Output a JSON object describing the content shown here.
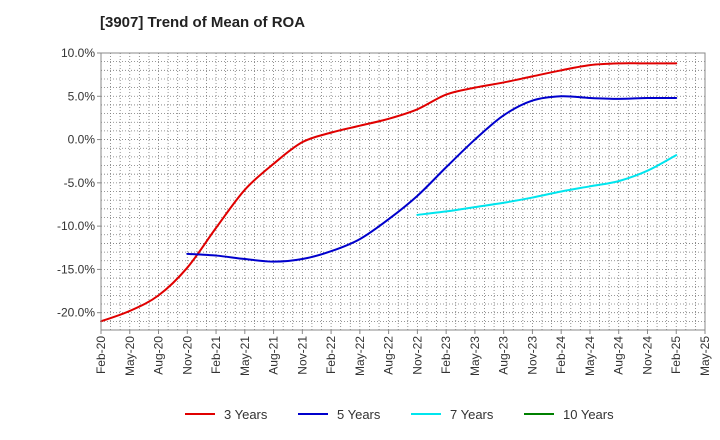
{
  "chart_data": {
    "type": "line",
    "title": "[3907]  Trend of Mean of ROA",
    "xlabel": "",
    "ylabel": "",
    "x_ticks": [
      "Feb-20",
      "May-20",
      "Aug-20",
      "Nov-20",
      "Feb-21",
      "May-21",
      "Aug-21",
      "Nov-21",
      "Feb-22",
      "May-22",
      "Aug-22",
      "Nov-22",
      "Feb-23",
      "May-23",
      "Aug-23",
      "Nov-23",
      "Feb-24",
      "May-24",
      "Aug-24",
      "Nov-24",
      "Feb-25",
      "May-25"
    ],
    "y_ticks": [
      "10.0%",
      "5.0%",
      "0.0%",
      "-5.0%",
      "-10.0%",
      "-15.0%",
      "-20.0%"
    ],
    "y_tick_values": [
      10,
      5,
      0,
      -5,
      -10,
      -15,
      -20
    ],
    "ylim": [
      -22,
      10
    ],
    "grid": true,
    "legend_position": "bottom",
    "series": [
      {
        "name": "3 Years",
        "color": "#e00000",
        "x": [
          "Feb-20",
          "May-20",
          "Aug-20",
          "Nov-20",
          "Feb-21",
          "May-21",
          "Aug-21",
          "Nov-21",
          "Feb-22",
          "May-22",
          "Aug-22",
          "Nov-22",
          "Feb-23",
          "May-23",
          "Aug-23",
          "Nov-23",
          "Feb-24",
          "May-24",
          "Aug-24",
          "Nov-24",
          "Feb-25"
        ],
        "values": [
          -21.0,
          -19.8,
          -18.0,
          -14.8,
          -10.2,
          -5.8,
          -2.8,
          -0.3,
          0.8,
          1.6,
          2.4,
          3.5,
          5.2,
          6.0,
          6.6,
          7.3,
          8.0,
          8.6,
          8.8,
          8.8,
          8.8
        ]
      },
      {
        "name": "5 Years",
        "color": "#0000cc",
        "x": [
          "Nov-20",
          "Feb-21",
          "May-21",
          "Aug-21",
          "Nov-21",
          "Feb-22",
          "May-22",
          "Aug-22",
          "Nov-22",
          "Feb-23",
          "May-23",
          "Aug-23",
          "Nov-23",
          "Feb-24",
          "May-24",
          "Aug-24",
          "Nov-24",
          "Feb-25"
        ],
        "values": [
          -13.2,
          -13.4,
          -13.8,
          -14.1,
          -13.8,
          -12.9,
          -11.5,
          -9.2,
          -6.5,
          -3.2,
          0.0,
          2.8,
          4.5,
          5.0,
          4.8,
          4.7,
          4.8,
          4.8
        ]
      },
      {
        "name": "7 Years",
        "color": "#00e5ee",
        "x": [
          "Nov-22",
          "Feb-23",
          "May-23",
          "Aug-23",
          "Nov-23",
          "Feb-24",
          "May-24",
          "Aug-24",
          "Nov-24",
          "Feb-25"
        ],
        "values": [
          -8.7,
          -8.3,
          -7.8,
          -7.3,
          -6.7,
          -6.0,
          -5.4,
          -4.8,
          -3.6,
          -1.8
        ]
      },
      {
        "name": "10 Years",
        "color": "#008000",
        "x": [],
        "values": []
      }
    ]
  }
}
